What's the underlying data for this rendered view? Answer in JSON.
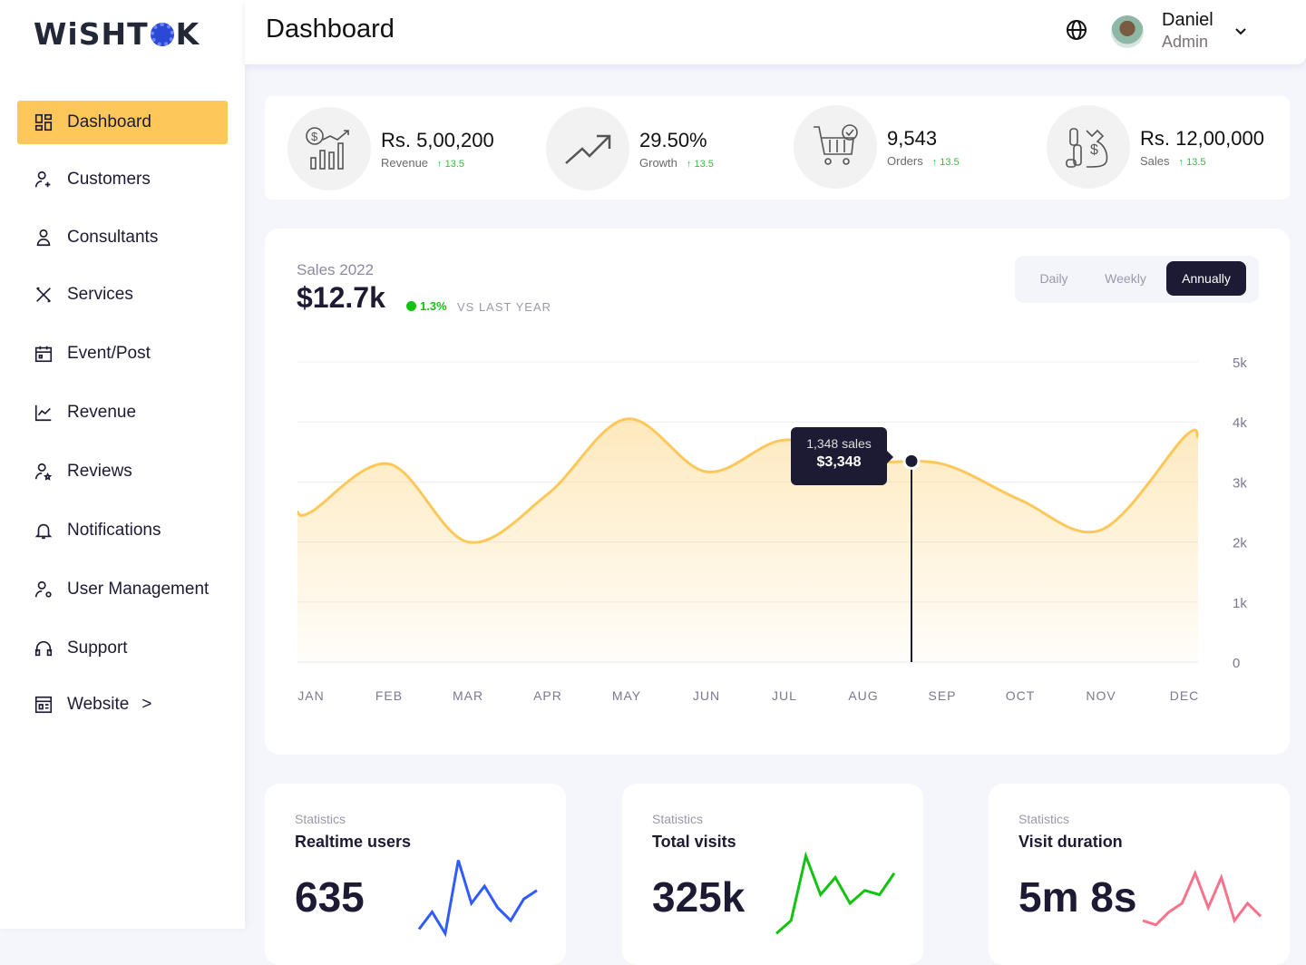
{
  "brand": {
    "logo_text": "WiSHTOK"
  },
  "sidebar": {
    "items": [
      {
        "label": "Dashboard",
        "icon": "dashboard-grid-icon",
        "active": true
      },
      {
        "label": "Customers",
        "icon": "user-add-icon"
      },
      {
        "label": "Consultants",
        "icon": "user-icon"
      },
      {
        "label": "Services",
        "icon": "tools-icon"
      },
      {
        "label": "Event/Post",
        "icon": "calendar-icon"
      },
      {
        "label": "Revenue",
        "icon": "line-chart-icon"
      },
      {
        "label": "Reviews",
        "icon": "user-star-icon"
      },
      {
        "label": "Notifications",
        "icon": "bell-icon"
      },
      {
        "label": "User Management",
        "icon": "user-gear-icon"
      },
      {
        "label": "Support",
        "icon": "headset-icon"
      },
      {
        "label": "Website",
        "icon": "website-icon",
        "chevron": ">"
      }
    ]
  },
  "header": {
    "title": "Dashboard",
    "user_name": "Daniel",
    "user_role": "Admin"
  },
  "stats": [
    {
      "value": "Rs. 5,00,200",
      "label": "Revenue",
      "change": "↑ 13.5",
      "icon": "revenue-chart-icon"
    },
    {
      "value": "29.50%",
      "label": "Growth",
      "change": "↑ 13.5",
      "icon": "trend-up-icon"
    },
    {
      "value": "9,543",
      "label": "Orders",
      "change": "↑ 13.5",
      "icon": "cart-check-icon"
    },
    {
      "value": "Rs. 12,00,000",
      "label": "Sales",
      "change": "↑ 13.5",
      "icon": "money-bag-icon"
    }
  ],
  "sales": {
    "subtitle": "Sales 2022",
    "total": "$12.7k",
    "change": "1.3%",
    "vs": "VS LAST YEAR",
    "periods": [
      "Daily",
      "Weekly",
      "Annually"
    ],
    "active_period": "Annually",
    "tooltip": {
      "sales": "1,348 sales",
      "value": "$3,348"
    }
  },
  "chart_data": {
    "type": "area",
    "categories": [
      "JAN",
      "FEB",
      "MAR",
      "APR",
      "MAY",
      "JUN",
      "JUL",
      "AUG",
      "SEP",
      "OCT",
      "NOV",
      "DEC"
    ],
    "values": [
      2500,
      3300,
      2000,
      2800,
      4050,
      3170,
      3700,
      3350,
      3300,
      2700,
      2200,
      3750
    ],
    "highlight": {
      "value": 3348
    },
    "y_ticks": [
      "0",
      "1k",
      "2k",
      "3k",
      "4k",
      "5k"
    ],
    "ylim": [
      0,
      5000
    ],
    "grid": true,
    "color": "#fdc859"
  },
  "mini_cards": [
    {
      "kicker": "Statistics",
      "title": "Realtime users",
      "value": "635",
      "color": "#2f5bff",
      "spark": [
        10,
        30,
        5,
        90,
        40,
        60,
        35,
        20,
        45,
        55
      ]
    },
    {
      "kicker": "Statistics",
      "title": "Total visits",
      "value": "325k",
      "color": "#13c313",
      "spark": [
        5,
        20,
        95,
        50,
        70,
        40,
        55,
        50,
        75
      ]
    },
    {
      "kicker": "Statistics",
      "title": "Visit duration",
      "value": "5m 8s",
      "color": "#f7738c",
      "spark": [
        20,
        15,
        30,
        40,
        75,
        35,
        70,
        20,
        40,
        25
      ]
    }
  ]
}
